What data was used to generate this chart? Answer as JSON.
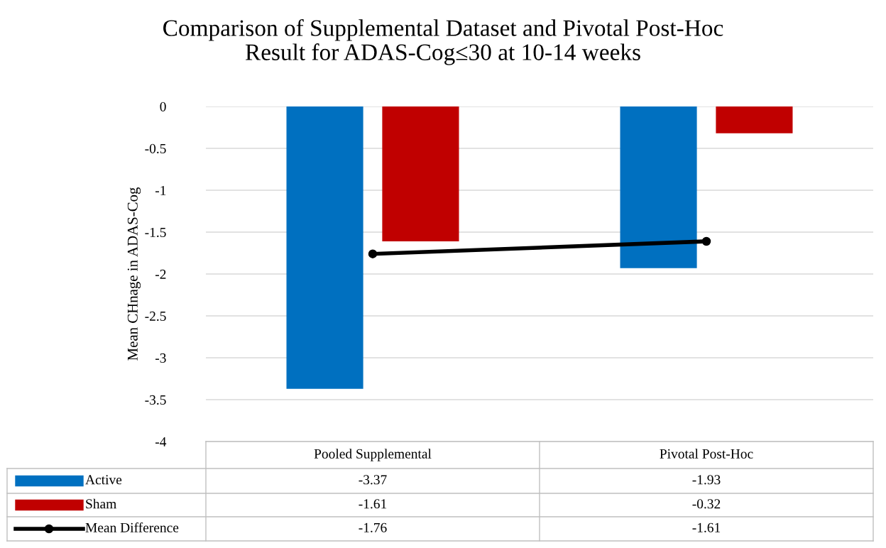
{
  "chart_data": {
    "type": "bar",
    "title": "Comparison of Supplemental Dataset and Pivotal Post-Hoc\nResult for ADAS-Cog≤30 at 10-14 weeks",
    "ylabel": "Mean CHnage in ADAS-Cog",
    "categories": [
      "Pooled Supplemental",
      "Pivotal Post-Hoc"
    ],
    "series": [
      {
        "name": "Active",
        "color": "#0070c0",
        "values": [
          -3.37,
          -1.93
        ]
      },
      {
        "name": "Sham",
        "color": "#c00000",
        "values": [
          -1.61,
          -0.32
        ]
      },
      {
        "name": "Mean Difference",
        "type": "line",
        "color": "#000000",
        "marker": "circle",
        "values": [
          -1.76,
          -1.61
        ]
      }
    ],
    "ylim": [
      -4,
      0
    ],
    "yticks": [
      -4,
      -3.5,
      -3,
      -2.5,
      -2,
      -1.5,
      -1,
      -0.5,
      0
    ],
    "grid": "y",
    "legend": "bottom",
    "data_labels": true
  }
}
